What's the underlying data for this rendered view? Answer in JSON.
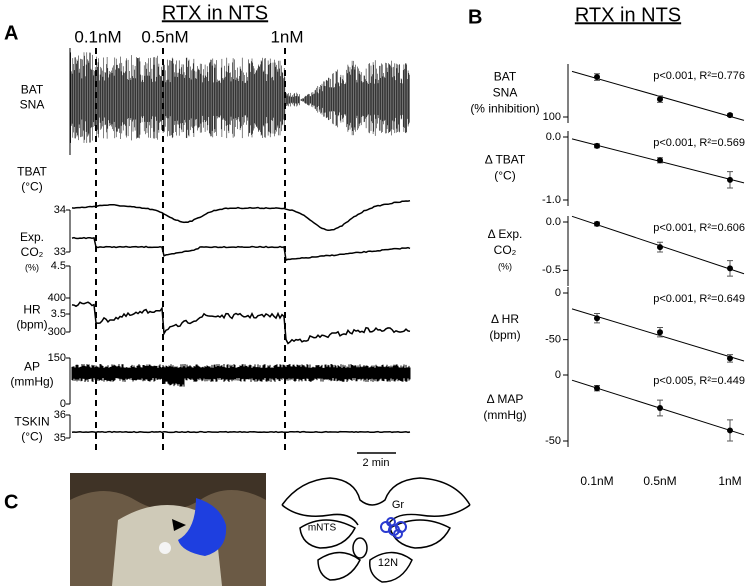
{
  "panel_labels": [
    "A",
    "B",
    "C"
  ],
  "panel_a": {
    "title": "RTX in NTS",
    "doses": [
      "0.1nM",
      "0.5nM",
      "1nM"
    ],
    "scale_bar": "2 min",
    "traces": [
      {
        "label": [
          "BAT",
          "SNA"
        ]
      },
      {
        "label": [
          "TBAT",
          "(°C)"
        ],
        "ticks": [
          "34",
          "33"
        ]
      },
      {
        "label": [
          "Exp.",
          "CO₂",
          "(%)"
        ],
        "ticks": [
          "4.5",
          "3.5"
        ]
      },
      {
        "label": [
          "HR",
          "(bpm)"
        ],
        "ticks": [
          "400",
          "300"
        ]
      },
      {
        "label": [
          "AP",
          "(mmHg)"
        ],
        "ticks": [
          "150",
          "0"
        ]
      },
      {
        "label": [
          "TSKIN",
          "(°C)"
        ],
        "ticks": [
          "36",
          "35"
        ]
      }
    ]
  },
  "panel_b": {
    "title": "RTX in NTS"
  },
  "panel_c": {
    "labels": [
      "Gr",
      "mNTS",
      "12N"
    ]
  },
  "chart_data": [
    {
      "type": "scatter",
      "ylabel": [
        "BAT",
        "SNA",
        "(% inhibition)"
      ],
      "annotation": "p<0.001, R²=0.776",
      "color": "#000000",
      "values": [
        15,
        62,
        96
      ],
      "errors": [
        7,
        7,
        3
      ],
      "ylim": [
        0,
        100
      ],
      "yticks": [
        100
      ],
      "y_inverted": true
    },
    {
      "type": "scatter",
      "ylabel": [
        "Δ TBAT",
        "(°C)"
      ],
      "annotation": "p<0.001, R²=0.569",
      "color": "#000000",
      "values": [
        -0.14,
        -0.37,
        -0.68
      ],
      "errors": [
        0.03,
        0.04,
        0.13
      ],
      "ylim": [
        -1.0,
        0.0
      ],
      "yticks": [
        {
          "value": 0,
          "label": "0.0"
        },
        {
          "value": -1,
          "label": "-1.0"
        }
      ]
    },
    {
      "type": "scatter",
      "ylabel": [
        "Δ Exp.",
        "CO₂",
        "(%)"
      ],
      "annotation": "p<0.001, R²=0.606",
      "color": "#000000",
      "values": [
        -0.02,
        -0.26,
        -0.48
      ],
      "errors": [
        0.02,
        0.05,
        0.08
      ],
      "ylim": [
        -0.6,
        0.0
      ],
      "yticks": [
        {
          "value": 0,
          "label": "0.0"
        },
        -0.5
      ]
    },
    {
      "type": "scatter",
      "ylabel": [
        "Δ HR",
        "(bpm)"
      ],
      "annotation": "p<0.001, R²=0.649",
      "color": "#000000",
      "values": [
        -27,
        -42,
        -70
      ],
      "errors": [
        5,
        5,
        4
      ],
      "ylim": [
        -75,
        0
      ],
      "yticks": [
        0,
        -50
      ]
    },
    {
      "type": "scatter",
      "ylabel": [
        "Δ MAP",
        "(mmHg)"
      ],
      "annotation": "p<0.005, R²=0.449",
      "color": "#000000",
      "values": [
        -10,
        -25,
        -42
      ],
      "errors": [
        2,
        6,
        8
      ],
      "ylim": [
        -50,
        0
      ],
      "yticks": [
        0,
        -50
      ],
      "categories": [
        "0.1nM",
        "0.5nM",
        "1nM"
      ]
    }
  ]
}
